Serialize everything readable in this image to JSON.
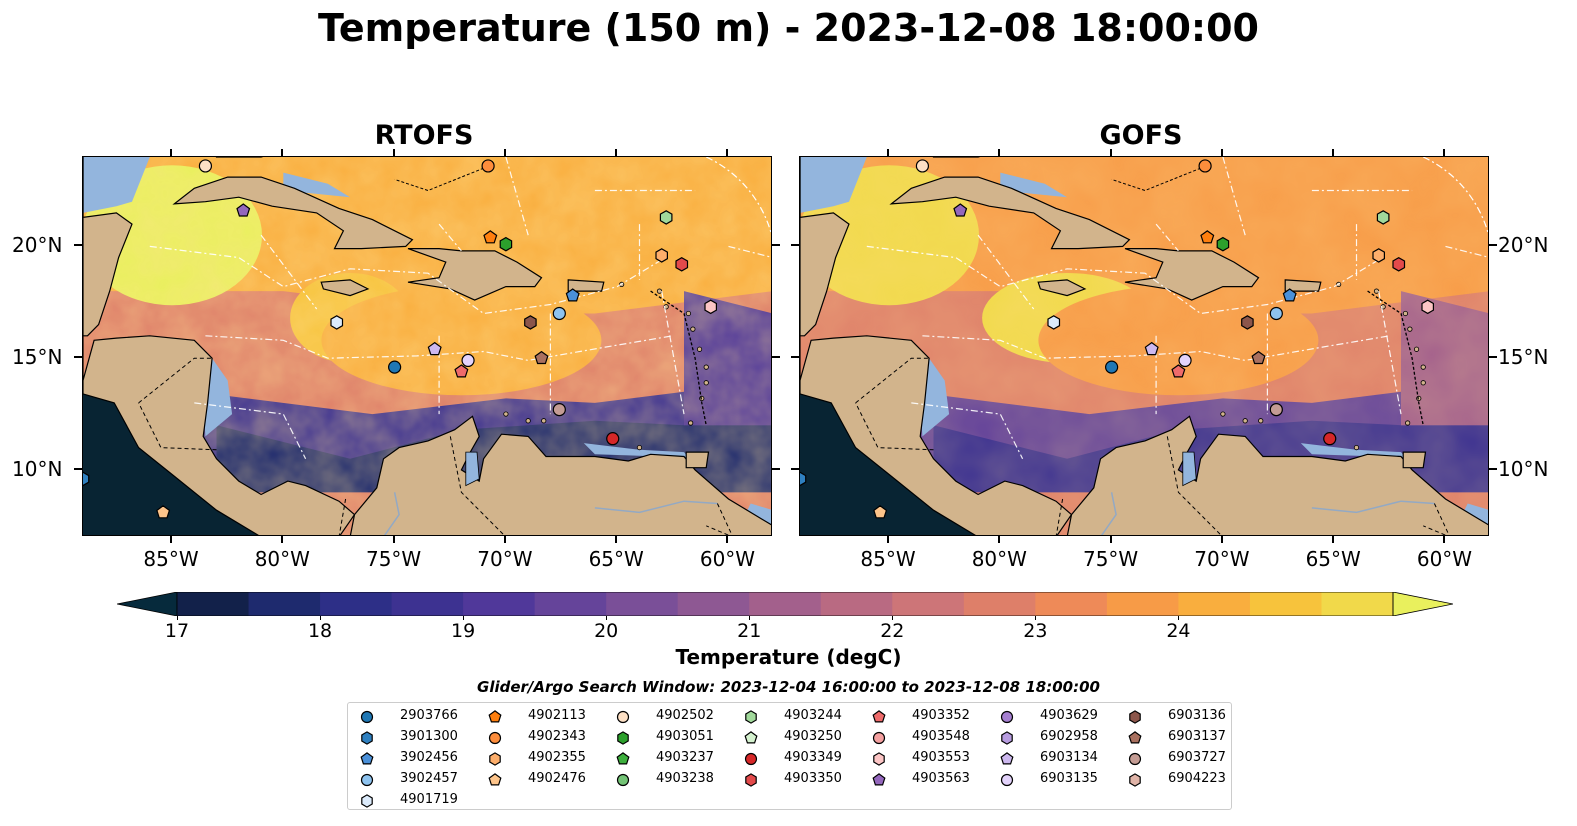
{
  "title": "Temperature (150 m) - 2023-12-08 18:00:00",
  "panels": [
    {
      "name": "RTOFS"
    },
    {
      "name": "GOFS"
    }
  ],
  "lon_ticks": [
    "85°W",
    "80°W",
    "75°W",
    "70°W",
    "65°W",
    "60°W"
  ],
  "lat_ticks": [
    "20°N",
    "15°N",
    "10°N"
  ],
  "colorbar": {
    "label": "Temperature (degC)",
    "ticks": [
      "17",
      "18",
      "19",
      "20",
      "21",
      "22",
      "23",
      "24"
    ],
    "min": 16.75,
    "max": 24.5,
    "colors": [
      "#062a3c",
      "#12214a",
      "#1e2a6e",
      "#2d2f87",
      "#3d3291",
      "#50389a",
      "#65449a",
      "#7a4f98",
      "#8e5893",
      "#a3608c",
      "#b96a82",
      "#cd7578",
      "#de7f69",
      "#ee8a58",
      "#f79b47",
      "#f9ae3e",
      "#f7c33c",
      "#f1d94a",
      "#e9f05d"
    ]
  },
  "legend": {
    "title": "Glider/Argo Search Window: 2023-12-04 16:00:00 to 2023-12-08 18:00:00",
    "items": [
      {
        "id": "2903766",
        "marker": "circle",
        "color": "#1f77b4"
      },
      {
        "id": "3901300",
        "marker": "hexagon",
        "color": "#2f80c0"
      },
      {
        "id": "3902456",
        "marker": "pentagon",
        "color": "#4a90d9"
      },
      {
        "id": "3902457",
        "marker": "circle",
        "color": "#8ec3ef"
      },
      {
        "id": "4901719",
        "marker": "hexagon",
        "color": "#dcebfb"
      },
      {
        "id": "4902113",
        "marker": "pentagon",
        "color": "#ff7f0e"
      },
      {
        "id": "4902343",
        "marker": "circle",
        "color": "#fd8d3c"
      },
      {
        "id": "4902355",
        "marker": "hexagon",
        "color": "#fdae6b"
      },
      {
        "id": "4902476",
        "marker": "pentagon",
        "color": "#fdc48a"
      },
      {
        "id": "4902502",
        "marker": "circle",
        "color": "#fde0c5"
      },
      {
        "id": "4903051",
        "marker": "hexagon",
        "color": "#2ca02c"
      },
      {
        "id": "4903237",
        "marker": "pentagon",
        "color": "#3daf3d"
      },
      {
        "id": "4903238",
        "marker": "circle",
        "color": "#74c476"
      },
      {
        "id": "4903244",
        "marker": "hexagon",
        "color": "#a1d99b"
      },
      {
        "id": "4903250",
        "marker": "pentagon",
        "color": "#d5f2cf"
      },
      {
        "id": "4903349",
        "marker": "circle",
        "color": "#d62728"
      },
      {
        "id": "4903350",
        "marker": "hexagon",
        "color": "#e34a4b"
      },
      {
        "id": "4903352",
        "marker": "pentagon",
        "color": "#ef6b6b"
      },
      {
        "id": "4903548",
        "marker": "circle",
        "color": "#f4a0a0"
      },
      {
        "id": "4903553",
        "marker": "hexagon",
        "color": "#fcc5c5"
      },
      {
        "id": "4903563",
        "marker": "pentagon",
        "color": "#9467bd"
      },
      {
        "id": "4903629",
        "marker": "circle",
        "color": "#a57fd0"
      },
      {
        "id": "6902958",
        "marker": "hexagon",
        "color": "#b79ce0"
      },
      {
        "id": "6903134",
        "marker": "pentagon",
        "color": "#cdb8ef"
      },
      {
        "id": "6903135",
        "marker": "circle",
        "color": "#e3d3fb"
      },
      {
        "id": "6903136",
        "marker": "hexagon",
        "color": "#8c564b"
      },
      {
        "id": "6903137",
        "marker": "pentagon",
        "color": "#a9705f"
      },
      {
        "id": "6903727",
        "marker": "circle",
        "color": "#c49c94"
      },
      {
        "id": "6904223",
        "marker": "hexagon",
        "color": "#e0b4a8"
      }
    ]
  },
  "map_extent": {
    "lon_min": -89,
    "lon_max": -58,
    "lat_min": 7,
    "lat_max": 24
  },
  "float_positions": [
    {
      "id": "2903766",
      "lon": -75.0,
      "lat": 14.6
    },
    {
      "id": "3901300",
      "lon": -89.0,
      "lat": 9.6
    },
    {
      "id": "3902456",
      "lon": -67.0,
      "lat": 17.8
    },
    {
      "id": "3902457",
      "lon": -67.6,
      "lat": 17.0
    },
    {
      "id": "4901719",
      "lon": -77.6,
      "lat": 16.6
    },
    {
      "id": "4902113",
      "lon": -70.7,
      "lat": 20.4
    },
    {
      "id": "4902476",
      "lon": -85.4,
      "lat": 8.1
    },
    {
      "id": "4902355",
      "lon": -63.0,
      "lat": 19.6
    },
    {
      "id": "4902343",
      "lon": -70.8,
      "lat": 23.6
    },
    {
      "id": "4902502",
      "lon": -83.5,
      "lat": 23.6
    },
    {
      "id": "4903051",
      "lon": -70.0,
      "lat": 20.1
    },
    {
      "id": "4903244",
      "lon": -62.8,
      "lat": 21.3
    },
    {
      "id": "4903349",
      "lon": -65.2,
      "lat": 11.4
    },
    {
      "id": "4903350",
      "lon": -62.1,
      "lat": 19.2
    },
    {
      "id": "4903352",
      "lon": -72.0,
      "lat": 14.4
    },
    {
      "id": "4903553",
      "lon": -60.8,
      "lat": 17.3
    },
    {
      "id": "4903563",
      "lon": -81.8,
      "lat": 21.6
    },
    {
      "id": "6903134",
      "lon": -73.2,
      "lat": 15.4
    },
    {
      "id": "6903135",
      "lon": -71.7,
      "lat": 14.9
    },
    {
      "id": "6903136",
      "lon": -68.9,
      "lat": 16.6
    },
    {
      "id": "6903137",
      "lon": -68.4,
      "lat": 15.0
    },
    {
      "id": "6903727",
      "lon": -67.6,
      "lat": 12.7
    }
  ]
}
